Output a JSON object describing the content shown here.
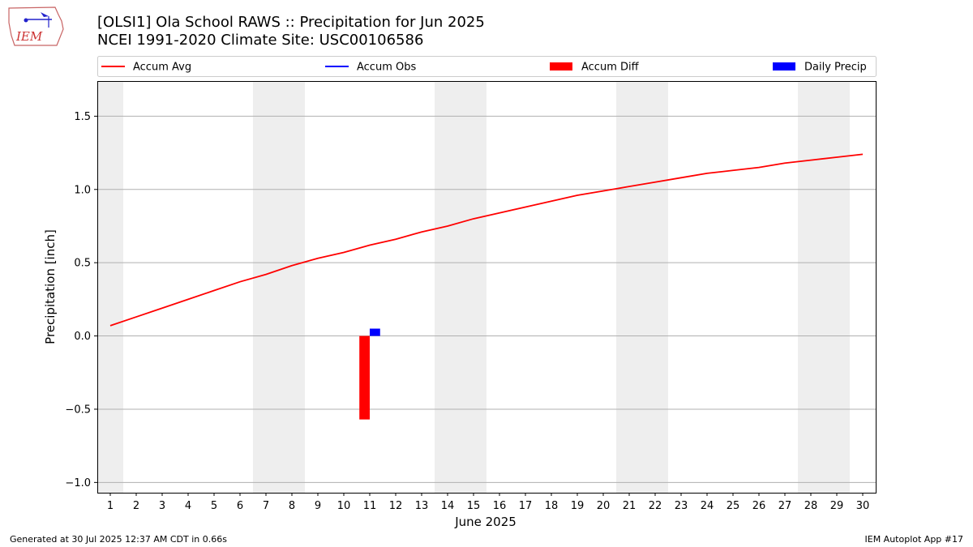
{
  "header": {
    "title_line1": "[OLSI1] Ola School RAWS :: Precipitation for Jun 2025",
    "title_line2": "NCEI 1991-2020 Climate Site: USC00106586",
    "logo_text": "IEM"
  },
  "footer": {
    "generated": "Generated at 30 Jul 2025 12:37 AM CDT in 0.66s",
    "app": "IEM Autoplot App #17"
  },
  "colors": {
    "accum_avg": "#ff0000",
    "accum_obs": "#0000ff",
    "accum_diff": "#ff0000",
    "daily_precip": "#0000ff",
    "weekend_shade": "#eeeeee",
    "grid": "#b0b0b0"
  },
  "chart_data": {
    "type": "line",
    "xlabel": "June 2025",
    "ylabel": "Precipitation [inch]",
    "x": [
      1,
      2,
      3,
      4,
      5,
      6,
      7,
      8,
      9,
      10,
      11,
      12,
      13,
      14,
      15,
      16,
      17,
      18,
      19,
      20,
      21,
      22,
      23,
      24,
      25,
      26,
      27,
      28,
      29,
      30
    ],
    "xticks": [
      "1",
      "2",
      "3",
      "4",
      "5",
      "6",
      "7",
      "8",
      "9",
      "10",
      "11",
      "12",
      "13",
      "14",
      "15",
      "16",
      "17",
      "18",
      "19",
      "20",
      "21",
      "22",
      "23",
      "24",
      "25",
      "26",
      "27",
      "28",
      "29",
      "30"
    ],
    "xlim": [
      0.5,
      30.5
    ],
    "ylim": [
      -1.07,
      1.74
    ],
    "yticks": [
      -1.0,
      -0.5,
      0.0,
      0.5,
      1.0,
      1.5
    ],
    "ytick_labels": [
      "−1.0",
      "−0.5",
      "0.0",
      "0.5",
      "1.0",
      "1.5"
    ],
    "grid": "horizontal",
    "legend": {
      "placement": "top",
      "entries": [
        {
          "label": "Accum Avg",
          "kind": "line",
          "color": "#ff0000"
        },
        {
          "label": "Accum Obs",
          "kind": "line",
          "color": "#0000ff"
        },
        {
          "label": "Accum Diff",
          "kind": "bar",
          "color": "#ff0000"
        },
        {
          "label": "Daily Precip",
          "kind": "bar",
          "color": "#0000ff"
        }
      ]
    },
    "weekend_days": [
      1,
      7,
      8,
      14,
      15,
      21,
      22,
      28,
      29
    ],
    "series": [
      {
        "name": "Accum Avg",
        "type": "line",
        "values": [
          0.07,
          0.13,
          0.19,
          0.25,
          0.31,
          0.37,
          0.42,
          0.48,
          0.53,
          0.57,
          0.62,
          0.66,
          0.71,
          0.75,
          0.8,
          0.84,
          0.88,
          0.92,
          0.96,
          0.99,
          1.02,
          1.05,
          1.08,
          1.11,
          1.13,
          1.15,
          1.18,
          1.2,
          1.22,
          1.24
        ]
      },
      {
        "name": "Accum Diff",
        "type": "bar",
        "points": [
          {
            "x": 11,
            "value": -0.57
          }
        ]
      },
      {
        "name": "Daily Precip",
        "type": "bar",
        "points": [
          {
            "x": 11,
            "value": 0.05
          }
        ]
      }
    ]
  }
}
